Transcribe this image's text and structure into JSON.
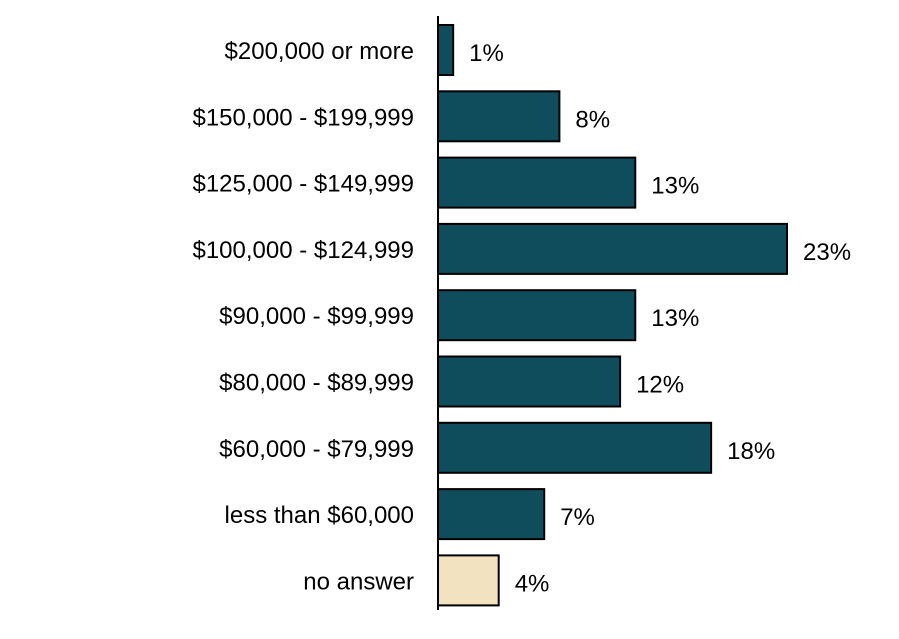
{
  "chart_data": {
    "type": "bar",
    "orientation": "horizontal",
    "categories": [
      "$200,000 or more",
      "$150,000 - $199,999",
      "$125,000 - $149,999",
      "$100,000 - $124,999",
      "$90,000 - $99,999",
      "$80,000 - $89,999",
      "$60,000 - $79,999",
      "less than $60,000",
      "no answer"
    ],
    "values": [
      1,
      8,
      13,
      23,
      13,
      12,
      18,
      7,
      4
    ],
    "value_labels": [
      "1%",
      "8%",
      "13%",
      "23%",
      "13%",
      "12%",
      "18%",
      "7%",
      "4%"
    ],
    "unit": "%",
    "bar_colors": [
      "#0f4c5c",
      "#0f4c5c",
      "#0f4c5c",
      "#0f4c5c",
      "#0f4c5c",
      "#0f4c5c",
      "#0f4c5c",
      "#0f4c5c",
      "#f2e2bf"
    ],
    "title": "",
    "xlabel": "",
    "ylabel": "",
    "xlim": [
      0,
      23
    ],
    "grid": false,
    "legend": "none"
  }
}
